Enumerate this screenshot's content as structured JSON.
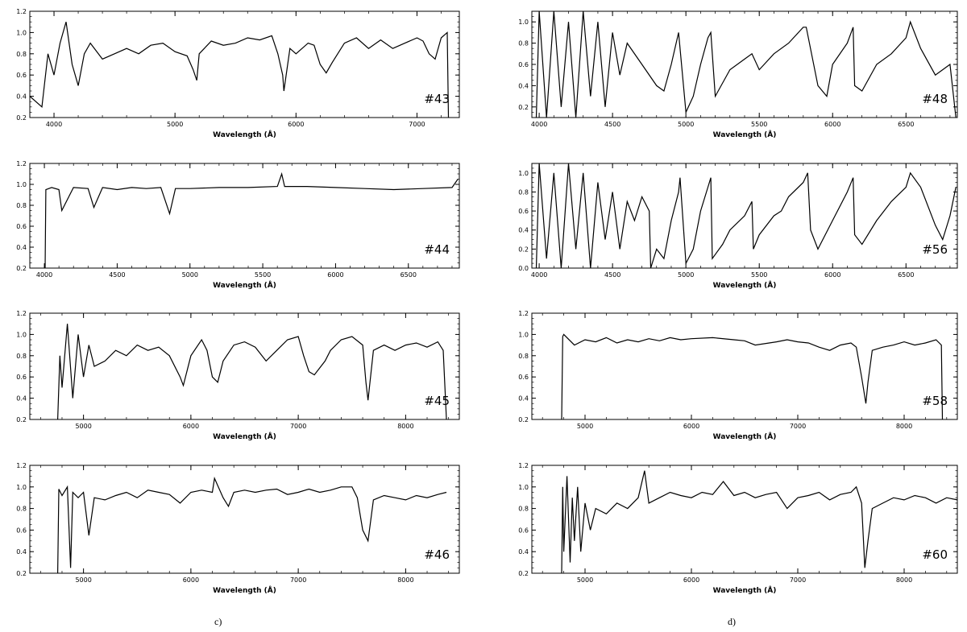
{
  "column_captions": [
    "c)",
    "d)"
  ],
  "chart_data": [
    {
      "type": "line",
      "id": "#43",
      "label": "#43",
      "xlabel": "Wavelength (Å)",
      "xlim": [
        3800,
        7350
      ],
      "ylim": [
        0.2,
        1.2
      ],
      "xticks": [
        4000,
        5000,
        6000,
        7000
      ],
      "yticks": [
        0.2,
        0.4,
        0.6,
        0.8,
        1.0,
        1.2
      ],
      "x": [
        3800,
        3900,
        3950,
        4000,
        4050,
        4100,
        4150,
        4200,
        4250,
        4300,
        4400,
        4500,
        4600,
        4700,
        4800,
        4900,
        5000,
        5100,
        5150,
        5180,
        5200,
        5300,
        5400,
        5500,
        5600,
        5700,
        5800,
        5850,
        5890,
        5900,
        5950,
        6000,
        6100,
        6150,
        6200,
        6250,
        6300,
        6400,
        6500,
        6600,
        6700,
        6800,
        6900,
        7000,
        7050,
        7100,
        7150,
        7200,
        7250,
        7260
      ],
      "y": [
        0.4,
        0.3,
        0.8,
        0.6,
        0.9,
        1.1,
        0.7,
        0.5,
        0.8,
        0.9,
        0.75,
        0.8,
        0.85,
        0.8,
        0.88,
        0.9,
        0.82,
        0.78,
        0.65,
        0.55,
        0.8,
        0.92,
        0.88,
        0.9,
        0.95,
        0.93,
        0.97,
        0.8,
        0.6,
        0.45,
        0.85,
        0.8,
        0.9,
        0.88,
        0.7,
        0.62,
        0.72,
        0.9,
        0.95,
        0.85,
        0.93,
        0.85,
        0.9,
        0.95,
        0.92,
        0.8,
        0.75,
        0.95,
        1.0,
        0.2
      ]
    },
    {
      "type": "line",
      "id": "#44",
      "label": "#44",
      "xlabel": "Wavelength (Å)",
      "xlim": [
        3900,
        6850
      ],
      "ylim": [
        0.2,
        1.2
      ],
      "xticks": [
        4000,
        4500,
        5000,
        5500,
        6000,
        6500
      ],
      "yticks": [
        0.2,
        0.4,
        0.6,
        0.8,
        1.0,
        1.2
      ],
      "x": [
        4005,
        4010,
        4050,
        4100,
        4120,
        4200,
        4300,
        4340,
        4400,
        4500,
        4600,
        4700,
        4800,
        4860,
        4900,
        5000,
        5200,
        5400,
        5600,
        5630,
        5650,
        5800,
        6000,
        6200,
        6400,
        6600,
        6800,
        6840
      ],
      "y": [
        0.2,
        0.95,
        0.97,
        0.95,
        0.75,
        0.97,
        0.96,
        0.78,
        0.97,
        0.95,
        0.97,
        0.96,
        0.97,
        0.72,
        0.96,
        0.96,
        0.97,
        0.97,
        0.98,
        1.1,
        0.98,
        0.98,
        0.97,
        0.96,
        0.95,
        0.96,
        0.97,
        1.05
      ]
    },
    {
      "type": "line",
      "id": "#45",
      "label": "#45",
      "xlabel": "Wavelength (Å)",
      "xlim": [
        4500,
        8500
      ],
      "ylim": [
        0.2,
        1.2
      ],
      "xticks": [
        5000,
        6000,
        7000,
        8000
      ],
      "yticks": [
        0.2,
        0.4,
        0.6,
        0.8,
        1.0,
        1.2
      ],
      "x": [
        4760,
        4780,
        4800,
        4850,
        4900,
        4950,
        5000,
        5050,
        5100,
        5200,
        5300,
        5400,
        5500,
        5600,
        5700,
        5800,
        5900,
        5930,
        6000,
        6100,
        6150,
        6200,
        6250,
        6300,
        6400,
        6500,
        6600,
        6700,
        6800,
        6900,
        7000,
        7050,
        7100,
        7150,
        7250,
        7300,
        7400,
        7500,
        7600,
        7630,
        7650,
        7700,
        7800,
        7900,
        8000,
        8100,
        8200,
        8300,
        8350,
        8380
      ],
      "y": [
        0.2,
        0.8,
        0.5,
        1.1,
        0.4,
        1.0,
        0.6,
        0.9,
        0.7,
        0.75,
        0.85,
        0.8,
        0.9,
        0.85,
        0.88,
        0.8,
        0.6,
        0.52,
        0.8,
        0.95,
        0.85,
        0.6,
        0.55,
        0.75,
        0.9,
        0.93,
        0.88,
        0.75,
        0.85,
        0.95,
        0.98,
        0.8,
        0.65,
        0.62,
        0.75,
        0.85,
        0.95,
        0.98,
        0.9,
        0.55,
        0.38,
        0.85,
        0.9,
        0.85,
        0.9,
        0.92,
        0.88,
        0.93,
        0.85,
        0.2
      ]
    },
    {
      "type": "line",
      "id": "#46",
      "label": "#46",
      "xlabel": "Wavelength (Å)",
      "xlim": [
        4500,
        8500
      ],
      "ylim": [
        0.2,
        1.2
      ],
      "xticks": [
        5000,
        6000,
        7000,
        8000
      ],
      "yticks": [
        0.2,
        0.4,
        0.6,
        0.8,
        1.0,
        1.2
      ],
      "x": [
        4760,
        4770,
        4800,
        4850,
        4880,
        4900,
        4950,
        5000,
        5050,
        5100,
        5200,
        5300,
        5400,
        5500,
        5600,
        5700,
        5800,
        5900,
        6000,
        6100,
        6200,
        6220,
        6300,
        6350,
        6400,
        6500,
        6600,
        6700,
        6800,
        6900,
        7000,
        7100,
        7200,
        7300,
        7400,
        7500,
        7550,
        7600,
        7650,
        7700,
        7800,
        7900,
        8000,
        8100,
        8200,
        8300,
        8380
      ],
      "y": [
        0.2,
        0.98,
        0.92,
        1.0,
        0.25,
        0.95,
        0.9,
        0.95,
        0.55,
        0.9,
        0.88,
        0.92,
        0.95,
        0.9,
        0.97,
        0.95,
        0.93,
        0.85,
        0.95,
        0.97,
        0.95,
        1.08,
        0.9,
        0.82,
        0.95,
        0.97,
        0.95,
        0.97,
        0.98,
        0.93,
        0.95,
        0.98,
        0.95,
        0.97,
        1.0,
        1.0,
        0.9,
        0.6,
        0.5,
        0.88,
        0.92,
        0.9,
        0.88,
        0.92,
        0.9,
        0.93,
        0.95
      ]
    },
    {
      "type": "line",
      "id": "#48",
      "label": "#48",
      "xlabel": "Wavelength (Å)",
      "xlim": [
        3950,
        6850
      ],
      "ylim": [
        0.1,
        1.1
      ],
      "xticks": [
        4000,
        4500,
        5000,
        5500,
        6000,
        6500
      ],
      "yticks": [
        0.2,
        0.4,
        0.6,
        0.8,
        1.0
      ],
      "x": [
        3980,
        4000,
        4050,
        4100,
        4150,
        4200,
        4250,
        4300,
        4350,
        4400,
        4450,
        4500,
        4550,
        4600,
        4700,
        4800,
        4850,
        4900,
        4950,
        5000,
        5050,
        5100,
        5150,
        5170,
        5200,
        5300,
        5400,
        5450,
        5500,
        5600,
        5700,
        5800,
        5820,
        5900,
        5960,
        6000,
        6100,
        6140,
        6150,
        6200,
        6300,
        6400,
        6500,
        6530,
        6600,
        6700,
        6750,
        6800,
        6840
      ],
      "y": [
        0.1,
        1.1,
        0.1,
        1.1,
        0.2,
        1.0,
        0.1,
        1.1,
        0.3,
        1.0,
        0.2,
        0.9,
        0.5,
        0.8,
        0.6,
        0.4,
        0.35,
        0.6,
        0.9,
        0.15,
        0.3,
        0.6,
        0.85,
        0.9,
        0.3,
        0.55,
        0.65,
        0.7,
        0.55,
        0.7,
        0.8,
        0.95,
        0.95,
        0.4,
        0.3,
        0.6,
        0.8,
        0.95,
        0.4,
        0.35,
        0.6,
        0.7,
        0.85,
        1.0,
        0.75,
        0.5,
        0.55,
        0.6,
        0.1
      ]
    },
    {
      "type": "line",
      "id": "#56",
      "label": "#56",
      "xlabel": "Wavelength (Å)",
      "xlim": [
        3950,
        6850
      ],
      "ylim": [
        0.0,
        1.1
      ],
      "xticks": [
        4000,
        4500,
        5000,
        5500,
        6000,
        6500
      ],
      "yticks": [
        0.0,
        0.2,
        0.4,
        0.6,
        0.8,
        1.0
      ],
      "x": [
        3980,
        4000,
        4050,
        4100,
        4150,
        4200,
        4250,
        4300,
        4350,
        4400,
        4450,
        4500,
        4550,
        4600,
        4650,
        4700,
        4750,
        4760,
        4800,
        4850,
        4900,
        4950,
        4960,
        5000,
        5050,
        5100,
        5150,
        5170,
        5180,
        5250,
        5300,
        5400,
        5450,
        5460,
        5500,
        5600,
        5650,
        5700,
        5800,
        5830,
        5850,
        5900,
        6000,
        6100,
        6140,
        6150,
        6200,
        6300,
        6400,
        6500,
        6530,
        6600,
        6700,
        6750,
        6800,
        6840
      ],
      "y": [
        0.0,
        1.1,
        0.1,
        1.0,
        0.0,
        1.1,
        0.2,
        1.0,
        0.0,
        0.9,
        0.3,
        0.8,
        0.2,
        0.7,
        0.5,
        0.75,
        0.6,
        0.0,
        0.2,
        0.1,
        0.5,
        0.8,
        0.95,
        0.05,
        0.2,
        0.6,
        0.85,
        0.95,
        0.1,
        0.25,
        0.4,
        0.55,
        0.7,
        0.2,
        0.35,
        0.55,
        0.6,
        0.75,
        0.9,
        1.0,
        0.4,
        0.2,
        0.5,
        0.8,
        0.95,
        0.35,
        0.25,
        0.5,
        0.7,
        0.85,
        1.0,
        0.85,
        0.45,
        0.3,
        0.55,
        0.85
      ]
    },
    {
      "type": "line",
      "id": "#58",
      "label": "#58",
      "xlabel": "Wavelength (Å)",
      "xlim": [
        4500,
        8500
      ],
      "ylim": [
        0.2,
        1.2
      ],
      "xticks": [
        5000,
        6000,
        7000,
        8000
      ],
      "yticks": [
        0.2,
        0.4,
        0.6,
        0.8,
        1.0,
        1.2
      ],
      "x": [
        4780,
        4790,
        4800,
        4900,
        5000,
        5100,
        5200,
        5300,
        5400,
        5500,
        5600,
        5700,
        5800,
        5900,
        6000,
        6200,
        6400,
        6500,
        6600,
        6800,
        6900,
        7000,
        7100,
        7200,
        7300,
        7400,
        7500,
        7550,
        7600,
        7640,
        7660,
        7700,
        7800,
        7900,
        8000,
        8100,
        8200,
        8300,
        8350,
        8360
      ],
      "y": [
        0.2,
        0.98,
        1.0,
        0.9,
        0.95,
        0.93,
        0.97,
        0.92,
        0.95,
        0.93,
        0.96,
        0.94,
        0.97,
        0.95,
        0.96,
        0.97,
        0.95,
        0.94,
        0.9,
        0.93,
        0.95,
        0.93,
        0.92,
        0.88,
        0.85,
        0.9,
        0.92,
        0.88,
        0.6,
        0.35,
        0.55,
        0.85,
        0.88,
        0.9,
        0.93,
        0.9,
        0.92,
        0.95,
        0.9,
        0.2
      ]
    },
    {
      "type": "line",
      "id": "#60",
      "label": "#60",
      "xlabel": "Wavelength (Å)",
      "xlim": [
        4500,
        8500
      ],
      "ylim": [
        0.2,
        1.2
      ],
      "xticks": [
        5000,
        6000,
        7000,
        8000
      ],
      "yticks": [
        0.2,
        0.4,
        0.6,
        0.8,
        1.0,
        1.2
      ],
      "x": [
        4780,
        4790,
        4800,
        4830,
        4860,
        4880,
        4900,
        4930,
        4960,
        5000,
        5050,
        5100,
        5200,
        5300,
        5400,
        5500,
        5560,
        5600,
        5700,
        5800,
        5900,
        6000,
        6100,
        6200,
        6300,
        6400,
        6500,
        6600,
        6700,
        6800,
        6900,
        7000,
        7100,
        7200,
        7300,
        7400,
        7500,
        7550,
        7600,
        7630,
        7660,
        7700,
        7800,
        7900,
        8000,
        8100,
        8200,
        8300,
        8400,
        8500
      ],
      "y": [
        0.2,
        1.0,
        0.4,
        1.1,
        0.3,
        0.9,
        0.5,
        1.0,
        0.4,
        0.85,
        0.6,
        0.8,
        0.75,
        0.85,
        0.8,
        0.9,
        1.15,
        0.85,
        0.9,
        0.95,
        0.92,
        0.9,
        0.95,
        0.93,
        1.05,
        0.92,
        0.95,
        0.9,
        0.93,
        0.95,
        0.8,
        0.9,
        0.92,
        0.95,
        0.88,
        0.93,
        0.95,
        1.0,
        0.85,
        0.25,
        0.5,
        0.8,
        0.85,
        0.9,
        0.88,
        0.92,
        0.9,
        0.85,
        0.9,
        0.88
      ]
    }
  ]
}
